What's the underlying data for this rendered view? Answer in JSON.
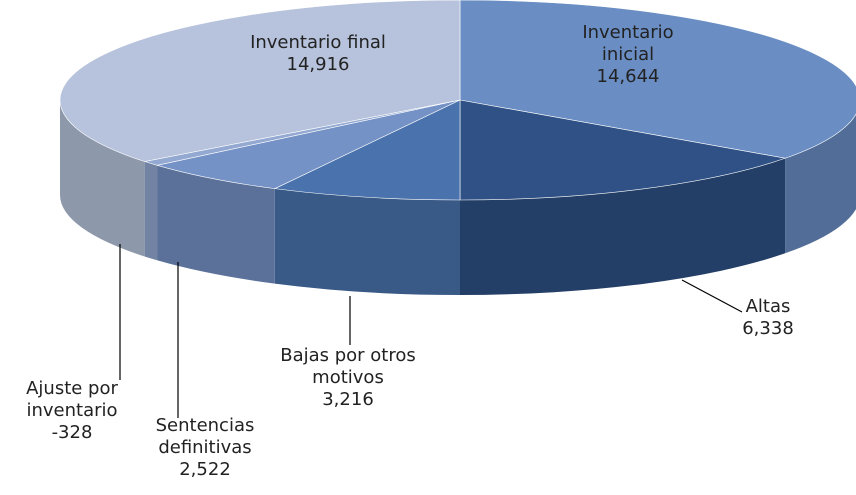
{
  "chart_data": {
    "type": "pie3d",
    "categories": [
      "Inventario inicial",
      "Altas",
      "Bajas por otros motivos",
      "Sentencias definitivas",
      "Ajuste por inventario",
      "Inventario final"
    ],
    "values": [
      14644,
      6338,
      3216,
      2522,
      -328,
      14916
    ],
    "value_labels": [
      "14,644",
      "6,338",
      "3,216",
      "2,522",
      "-328",
      "14,916"
    ],
    "colors": [
      "#6a8ec4",
      "#2f5185",
      "#4a73ad",
      "#7592c6",
      "#93a9d1",
      "#b7c3dc"
    ]
  }
}
